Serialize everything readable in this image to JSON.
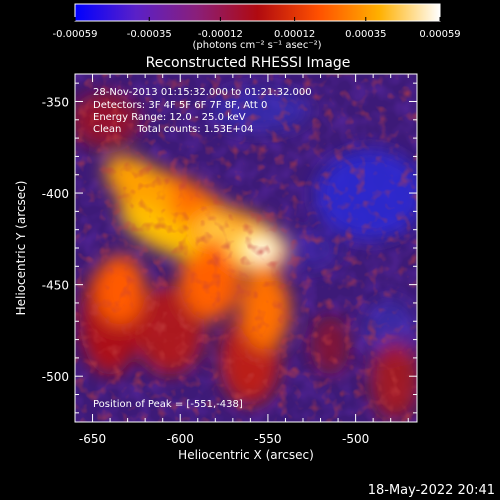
{
  "colorbar": {
    "tick_labels": [
      "-0.00059",
      "-0.00035",
      "-0.00012",
      "0.00012",
      "0.00035",
      "0.00059"
    ],
    "tick_values": [
      -0.00059,
      -0.00035,
      -0.00012,
      0.00012,
      0.00035,
      0.00059
    ],
    "range": [
      -0.00059,
      0.00059
    ],
    "units_label": "(photons cm⁻² s⁻¹ asec⁻²)",
    "colors": [
      "#0000ff",
      "#5a20c8",
      "#8a1f7a",
      "#b00a10",
      "#ff5000",
      "#ffb000",
      "#ffffff"
    ]
  },
  "chart_data": {
    "type": "heatmap",
    "title": "Reconstructed RHESSI Image",
    "xlabel": "Heliocentric X (arcsec)",
    "ylabel": "Heliocentric Y (arcsec)",
    "xlim": [
      -660,
      -465
    ],
    "ylim": [
      -525,
      -335
    ],
    "x_ticks": [
      -650,
      -600,
      -550,
      -500
    ],
    "x_tick_labels": [
      "-650",
      "-600",
      "-550",
      "-500"
    ],
    "y_ticks": [
      -350,
      -400,
      -450,
      -500
    ],
    "y_tick_labels": [
      "-350",
      "-400",
      "-450",
      "-500"
    ],
    "peak": {
      "x": -551,
      "y": -438
    },
    "grid": false
  },
  "annotations": {
    "time": "28-Nov-2013 01:15:32.000 to 01:21:32.000",
    "detectors": "Detectors: 3F 4F 5F 6F 7F 8F, Att 0",
    "energy": "Energy Range: 12.0 - 25.0 keV",
    "method": "Clean     Total counts: 1.53E+04",
    "peak_position": "Position of Peak = [-551,-438]"
  },
  "footer": {
    "date": "18-May-2022 20:41"
  }
}
